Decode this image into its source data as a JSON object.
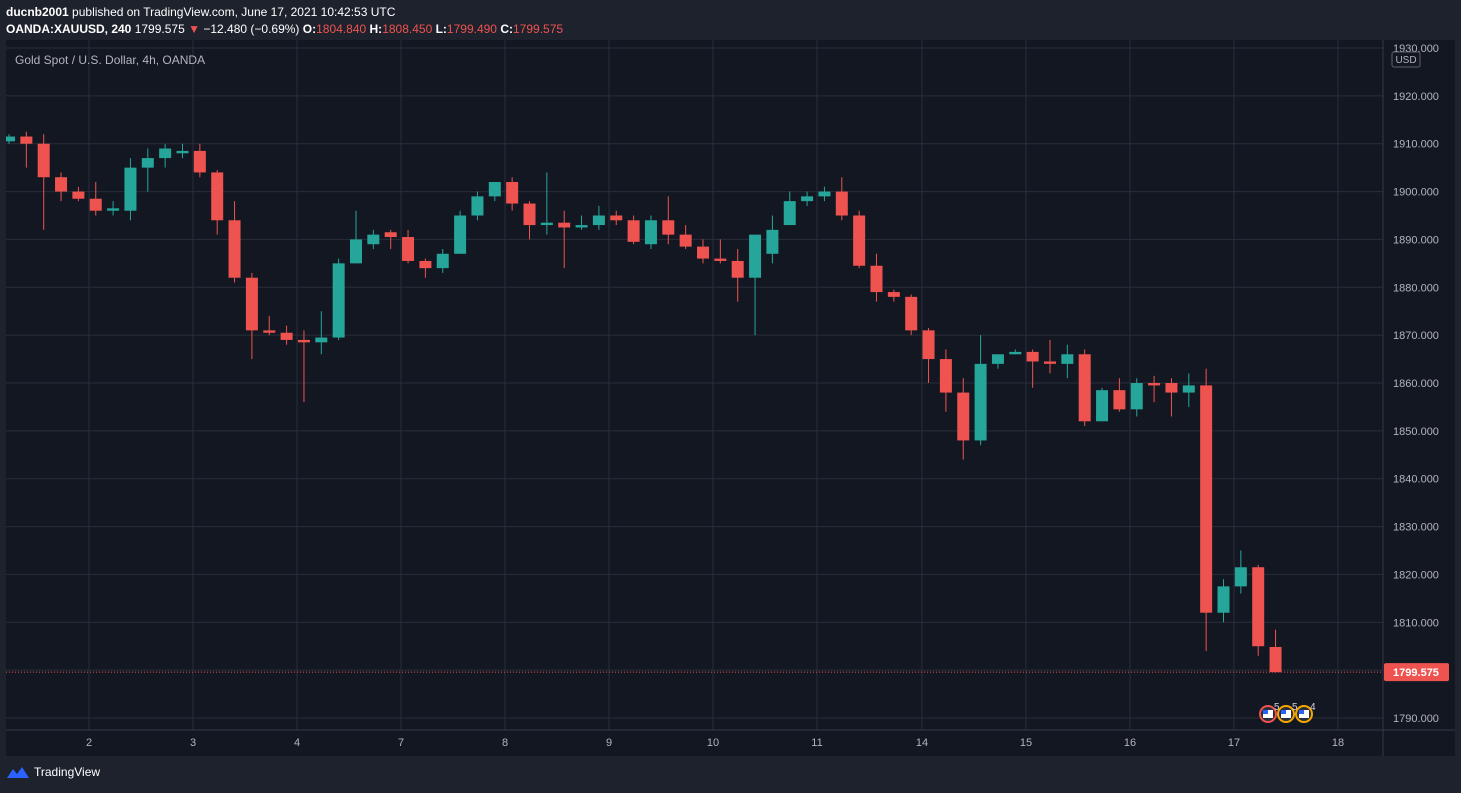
{
  "header": {
    "author": "ducnb2001",
    "published_text": "published on TradingView.com, June 17, 2021 10:42:53 UTC"
  },
  "ohlc": {
    "symbol": "OANDA:XAUUSD, 240",
    "last": "1799.575",
    "change": "−12.480 (−0.69%)",
    "o_label": "O:",
    "o": "1804.840",
    "h_label": "H:",
    "h": "1808.450",
    "l_label": "L:",
    "l": "1799.490",
    "c_label": "C:",
    "c": "1799.575"
  },
  "legend": {
    "title": "Gold Spot / U.S. Dollar, 4h, OANDA"
  },
  "footer": {
    "brand": "TradingView"
  },
  "colors": {
    "up": "#26a69a",
    "down": "#ef5350",
    "bg": "#131722",
    "grid": "#2a2e39"
  },
  "chart_data": {
    "type": "candlestick",
    "currency_badge": "USD",
    "last_price_label": "1799.575",
    "ylim": [
      1787,
      1930
    ],
    "y_ticks": [
      "1790.000",
      "1800.000",
      "1810.000",
      "1820.000",
      "1830.000",
      "1840.000",
      "1850.000",
      "1860.000",
      "1870.000",
      "1880.000",
      "1890.000",
      "1900.000",
      "1910.000",
      "1920.000",
      "1930.000"
    ],
    "x_ticks": [
      "2",
      "3",
      "4",
      "7",
      "8",
      "9",
      "10",
      "11",
      "14",
      "15",
      "16",
      "17",
      "18"
    ],
    "event_counts": [
      "5",
      "5",
      "4"
    ],
    "candles": [
      {
        "o": 1910.5,
        "h": 1912,
        "l": 1910,
        "c": 1911.5
      },
      {
        "o": 1911.5,
        "h": 1912.5,
        "l": 1905,
        "c": 1910
      },
      {
        "o": 1910,
        "h": 1912,
        "l": 1892,
        "c": 1903
      },
      {
        "o": 1903,
        "h": 1904,
        "l": 1898,
        "c": 1900
      },
      {
        "o": 1900,
        "h": 1901,
        "l": 1898,
        "c": 1898.5
      },
      {
        "o": 1898.5,
        "h": 1902,
        "l": 1895,
        "c": 1896
      },
      {
        "o": 1896,
        "h": 1898,
        "l": 1895,
        "c": 1896.5
      },
      {
        "o": 1896,
        "h": 1907,
        "l": 1894,
        "c": 1905
      },
      {
        "o": 1905,
        "h": 1909,
        "l": 1900,
        "c": 1907
      },
      {
        "o": 1907,
        "h": 1910,
        "l": 1905,
        "c": 1909
      },
      {
        "o": 1908,
        "h": 1910,
        "l": 1907,
        "c": 1908.5
      },
      {
        "o": 1908.5,
        "h": 1910,
        "l": 1903,
        "c": 1904
      },
      {
        "o": 1904,
        "h": 1904.5,
        "l": 1891,
        "c": 1894
      },
      {
        "o": 1894,
        "h": 1898,
        "l": 1881,
        "c": 1882
      },
      {
        "o": 1882,
        "h": 1883,
        "l": 1865,
        "c": 1871
      },
      {
        "o": 1871,
        "h": 1874,
        "l": 1870,
        "c": 1870.5
      },
      {
        "o": 1870.5,
        "h": 1872,
        "l": 1868,
        "c": 1869
      },
      {
        "o": 1869,
        "h": 1871,
        "l": 1856,
        "c": 1868.5
      },
      {
        "o": 1868.5,
        "h": 1875,
        "l": 1866,
        "c": 1869.5
      },
      {
        "o": 1869.5,
        "h": 1886,
        "l": 1869,
        "c": 1885
      },
      {
        "o": 1885,
        "h": 1896,
        "l": 1885,
        "c": 1890
      },
      {
        "o": 1889,
        "h": 1892,
        "l": 1888,
        "c": 1891
      },
      {
        "o": 1891.5,
        "h": 1892,
        "l": 1888,
        "c": 1890.5
      },
      {
        "o": 1890.5,
        "h": 1892,
        "l": 1885,
        "c": 1885.5
      },
      {
        "o": 1885.5,
        "h": 1886,
        "l": 1882,
        "c": 1884
      },
      {
        "o": 1884,
        "h": 1888,
        "l": 1883,
        "c": 1887
      },
      {
        "o": 1887,
        "h": 1896,
        "l": 1887,
        "c": 1895
      },
      {
        "o": 1895,
        "h": 1900,
        "l": 1894,
        "c": 1899
      },
      {
        "o": 1899,
        "h": 1902,
        "l": 1898,
        "c": 1902
      },
      {
        "o": 1902,
        "h": 1903,
        "l": 1896,
        "c": 1897.5
      },
      {
        "o": 1897.5,
        "h": 1898,
        "l": 1890,
        "c": 1893
      },
      {
        "o": 1893,
        "h": 1904,
        "l": 1891,
        "c": 1893.5
      },
      {
        "o": 1893.5,
        "h": 1896,
        "l": 1884,
        "c": 1892.5
      },
      {
        "o": 1892.5,
        "h": 1895,
        "l": 1892,
        "c": 1893
      },
      {
        "o": 1893,
        "h": 1897,
        "l": 1892,
        "c": 1895
      },
      {
        "o": 1895,
        "h": 1896,
        "l": 1893,
        "c": 1894
      },
      {
        "o": 1894,
        "h": 1895,
        "l": 1889,
        "c": 1889.5
      },
      {
        "o": 1889,
        "h": 1895,
        "l": 1888,
        "c": 1894
      },
      {
        "o": 1894,
        "h": 1899,
        "l": 1889,
        "c": 1891
      },
      {
        "o": 1891,
        "h": 1893,
        "l": 1888,
        "c": 1888.5
      },
      {
        "o": 1888.5,
        "h": 1890,
        "l": 1885,
        "c": 1886
      },
      {
        "o": 1886,
        "h": 1890,
        "l": 1885,
        "c": 1885.5
      },
      {
        "o": 1885.5,
        "h": 1888,
        "l": 1877,
        "c": 1882
      },
      {
        "o": 1882,
        "h": 1891,
        "l": 1870,
        "c": 1891
      },
      {
        "o": 1887,
        "h": 1895,
        "l": 1885,
        "c": 1892
      },
      {
        "o": 1893,
        "h": 1900,
        "l": 1893,
        "c": 1898
      },
      {
        "o": 1898,
        "h": 1900,
        "l": 1897,
        "c": 1899
      },
      {
        "o": 1899,
        "h": 1901,
        "l": 1898,
        "c": 1900
      },
      {
        "o": 1900,
        "h": 1903,
        "l": 1894,
        "c": 1895
      },
      {
        "o": 1895,
        "h": 1896,
        "l": 1884,
        "c": 1884.5
      },
      {
        "o": 1884.5,
        "h": 1887,
        "l": 1877,
        "c": 1879
      },
      {
        "o": 1879,
        "h": 1879.5,
        "l": 1877,
        "c": 1878
      },
      {
        "o": 1878,
        "h": 1878.5,
        "l": 1870,
        "c": 1871
      },
      {
        "o": 1871,
        "h": 1871.5,
        "l": 1860,
        "c": 1865
      },
      {
        "o": 1865,
        "h": 1867,
        "l": 1854,
        "c": 1858
      },
      {
        "o": 1858,
        "h": 1861,
        "l": 1844,
        "c": 1848
      },
      {
        "o": 1848,
        "h": 1870,
        "l": 1847,
        "c": 1864
      },
      {
        "o": 1864,
        "h": 1866,
        "l": 1863,
        "c": 1866
      },
      {
        "o": 1866,
        "h": 1867,
        "l": 1866,
        "c": 1866.5
      },
      {
        "o": 1866.5,
        "h": 1867,
        "l": 1859,
        "c": 1864.5
      },
      {
        "o": 1864.5,
        "h": 1869,
        "l": 1862,
        "c": 1864
      },
      {
        "o": 1864,
        "h": 1868,
        "l": 1861,
        "c": 1866
      },
      {
        "o": 1866,
        "h": 1867,
        "l": 1851,
        "c": 1852
      },
      {
        "o": 1852,
        "h": 1859,
        "l": 1852,
        "c": 1858.5
      },
      {
        "o": 1858.5,
        "h": 1861,
        "l": 1854,
        "c": 1854.5
      },
      {
        "o": 1854.5,
        "h": 1861,
        "l": 1853,
        "c": 1860
      },
      {
        "o": 1860,
        "h": 1861.5,
        "l": 1856,
        "c": 1859.5
      },
      {
        "o": 1860,
        "h": 1861,
        "l": 1853,
        "c": 1858
      },
      {
        "o": 1858,
        "h": 1862,
        "l": 1855,
        "c": 1859.5
      },
      {
        "o": 1859.5,
        "h": 1863,
        "l": 1804,
        "c": 1812
      },
      {
        "o": 1812,
        "h": 1819,
        "l": 1810,
        "c": 1817.5
      },
      {
        "o": 1817.5,
        "h": 1825,
        "l": 1816,
        "c": 1821.5
      },
      {
        "o": 1821.5,
        "h": 1822,
        "l": 1803,
        "c": 1805
      },
      {
        "o": 1804.84,
        "h": 1808.45,
        "l": 1799.49,
        "c": 1799.575
      }
    ]
  }
}
